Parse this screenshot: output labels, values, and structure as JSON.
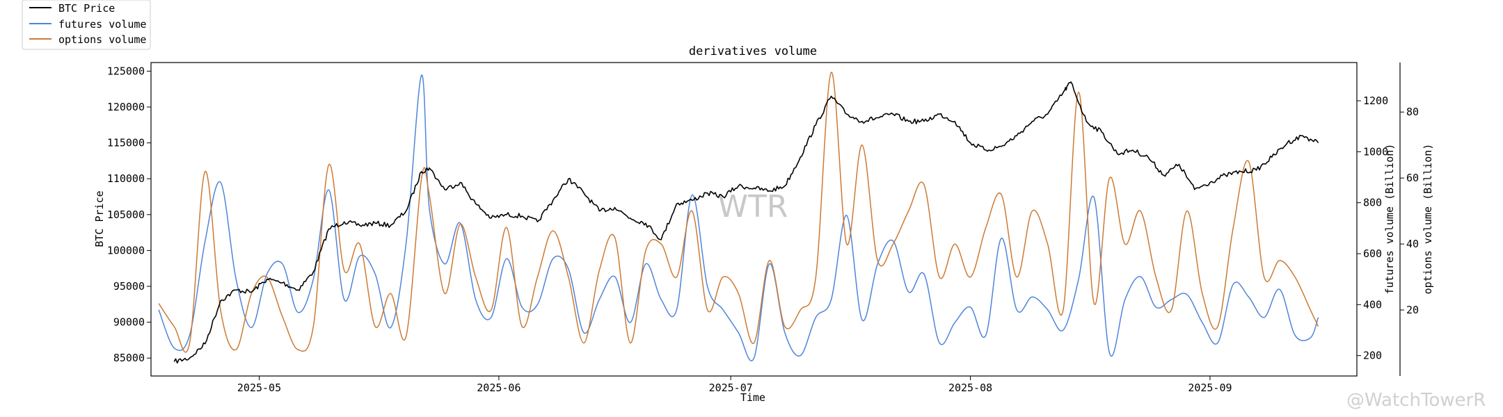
{
  "chart_data": {
    "type": "line",
    "title": "derivatives volume",
    "xlabel": "Time",
    "ylabel_left": "BTC Price",
    "ylabel_right_1": "futures volume (Billion)",
    "ylabel_right_2": "options volume (Billion)",
    "xlim": [
      "2025-04-17",
      "2025-09-20"
    ],
    "x_ticks": [
      "2025-05",
      "2025-06",
      "2025-07",
      "2025-08",
      "2025-09"
    ],
    "ylim_left": [
      82500,
      126200
    ],
    "y_ticks_left": [
      "85000",
      "90000",
      "95000",
      "100000",
      "105000",
      "110000",
      "115000",
      "120000",
      "125000"
    ],
    "ylim_futures": [
      120,
      1350
    ],
    "y_ticks_futures": [
      "200",
      "400",
      "600",
      "800",
      "1000",
      "1200"
    ],
    "ylim_options": [
      0,
      95
    ],
    "y_ticks_options": [
      "20",
      "40",
      "60",
      "80"
    ],
    "grid": false,
    "legend_position": "top-left",
    "watermark": "WTR",
    "credit": "@WatchTowerR",
    "series": [
      {
        "name": "BTC Price",
        "axis": "left",
        "color": "#000000",
        "x": [
          "2025-04-20",
          "2025-04-22",
          "2025-04-24",
          "2025-04-26",
          "2025-04-28",
          "2025-04-30",
          "2025-05-02",
          "2025-05-04",
          "2025-05-06",
          "2025-05-08",
          "2025-05-10",
          "2025-05-12",
          "2025-05-14",
          "2025-05-16",
          "2025-05-18",
          "2025-05-20",
          "2025-05-22",
          "2025-05-23",
          "2025-05-25",
          "2025-05-27",
          "2025-05-29",
          "2025-05-31",
          "2025-06-02",
          "2025-06-04",
          "2025-06-06",
          "2025-06-08",
          "2025-06-10",
          "2025-06-12",
          "2025-06-14",
          "2025-06-16",
          "2025-06-18",
          "2025-06-20",
          "2025-06-22",
          "2025-06-24",
          "2025-06-26",
          "2025-06-28",
          "2025-06-30",
          "2025-07-02",
          "2025-07-04",
          "2025-07-06",
          "2025-07-08",
          "2025-07-10",
          "2025-07-12",
          "2025-07-14",
          "2025-07-16",
          "2025-07-18",
          "2025-07-20",
          "2025-07-22",
          "2025-07-24",
          "2025-07-26",
          "2025-07-28",
          "2025-07-30",
          "2025-08-01",
          "2025-08-03",
          "2025-08-05",
          "2025-08-07",
          "2025-08-09",
          "2025-08-11",
          "2025-08-13",
          "2025-08-14",
          "2025-08-16",
          "2025-08-18",
          "2025-08-20",
          "2025-08-22",
          "2025-08-24",
          "2025-08-26",
          "2025-08-28",
          "2025-08-30",
          "2025-09-01",
          "2025-09-03",
          "2025-09-05",
          "2025-09-07",
          "2025-09-09",
          "2025-09-11",
          "2025-09-13",
          "2025-09-15"
        ],
        "values": [
          84500,
          85000,
          87000,
          93000,
          94500,
          94200,
          96000,
          95500,
          94500,
          97000,
          103000,
          104000,
          103500,
          103800,
          103500,
          105500,
          111000,
          111500,
          108500,
          109500,
          106500,
          104500,
          105000,
          104800,
          104000,
          107000,
          110000,
          108000,
          105500,
          106000,
          104500,
          103800,
          101500,
          106500,
          107000,
          108000,
          107500,
          109000,
          108700,
          108300,
          109000,
          113000,
          117500,
          121500,
          119000,
          118000,
          118500,
          119000,
          118000,
          118000,
          119000,
          118000,
          115000,
          114000,
          114500,
          116000,
          118000,
          119000,
          122000,
          123500,
          118000,
          116500,
          113500,
          114000,
          113000,
          110500,
          112000,
          108500,
          109500,
          110500,
          111000,
          111200,
          113000,
          115000,
          116000,
          115000
        ]
      },
      {
        "name": "futures volume",
        "axis": "right_1",
        "color": "#4f84d9",
        "x": [
          "2025-04-18",
          "2025-04-20",
          "2025-04-22",
          "2025-04-24",
          "2025-04-26",
          "2025-04-28",
          "2025-04-30",
          "2025-05-02",
          "2025-05-04",
          "2025-05-06",
          "2025-05-08",
          "2025-05-10",
          "2025-05-12",
          "2025-05-14",
          "2025-05-16",
          "2025-05-18",
          "2025-05-20",
          "2025-05-22",
          "2025-05-23",
          "2025-05-25",
          "2025-05-27",
          "2025-05-29",
          "2025-05-31",
          "2025-06-02",
          "2025-06-04",
          "2025-06-06",
          "2025-06-08",
          "2025-06-10",
          "2025-06-12",
          "2025-06-14",
          "2025-06-16",
          "2025-06-18",
          "2025-06-20",
          "2025-06-22",
          "2025-06-24",
          "2025-06-26",
          "2025-06-28",
          "2025-06-30",
          "2025-07-02",
          "2025-07-04",
          "2025-07-06",
          "2025-07-08",
          "2025-07-10",
          "2025-07-12",
          "2025-07-14",
          "2025-07-16",
          "2025-07-18",
          "2025-07-20",
          "2025-07-22",
          "2025-07-24",
          "2025-07-26",
          "2025-07-28",
          "2025-07-30",
          "2025-08-01",
          "2025-08-03",
          "2025-08-05",
          "2025-08-07",
          "2025-08-09",
          "2025-08-11",
          "2025-08-13",
          "2025-08-15",
          "2025-08-17",
          "2025-08-19",
          "2025-08-21",
          "2025-08-23",
          "2025-08-25",
          "2025-08-27",
          "2025-08-29",
          "2025-08-31",
          "2025-09-02",
          "2025-09-04",
          "2025-09-06",
          "2025-09-08",
          "2025-09-10",
          "2025-09-12",
          "2025-09-14",
          "2025-09-15"
        ],
        "values": [
          380,
          230,
          280,
          650,
          880,
          500,
          310,
          520,
          560,
          370,
          500,
          850,
          420,
          590,
          520,
          310,
          640,
          1300,
          780,
          560,
          720,
          420,
          350,
          580,
          390,
          400,
          580,
          540,
          290,
          420,
          510,
          330,
          560,
          420,
          380,
          830,
          470,
          380,
          290,
          190,
          560,
          290,
          200,
          350,
          420,
          750,
          340,
          560,
          650,
          450,
          520,
          250,
          330,
          390,
          280,
          660,
          380,
          430,
          380,
          300,
          500,
          820,
          210,
          420,
          510,
          390,
          420,
          440,
          330,
          250,
          480,
          430,
          350,
          460,
          280,
          270,
          350
        ]
      },
      {
        "name": "options volume",
        "axis": "right_2",
        "color": "#cc7a33",
        "x": [
          "2025-04-18",
          "2025-04-20",
          "2025-04-22",
          "2025-04-24",
          "2025-04-26",
          "2025-04-28",
          "2025-04-30",
          "2025-05-02",
          "2025-05-04",
          "2025-05-06",
          "2025-05-08",
          "2025-05-10",
          "2025-05-12",
          "2025-05-14",
          "2025-05-16",
          "2025-05-18",
          "2025-05-20",
          "2025-05-22",
          "2025-05-23",
          "2025-05-25",
          "2025-05-27",
          "2025-05-29",
          "2025-05-31",
          "2025-06-02",
          "2025-06-04",
          "2025-06-06",
          "2025-06-08",
          "2025-06-10",
          "2025-06-12",
          "2025-06-14",
          "2025-06-16",
          "2025-06-18",
          "2025-06-20",
          "2025-06-22",
          "2025-06-24",
          "2025-06-26",
          "2025-06-28",
          "2025-06-30",
          "2025-07-02",
          "2025-07-04",
          "2025-07-06",
          "2025-07-08",
          "2025-07-10",
          "2025-07-12",
          "2025-07-14",
          "2025-07-16",
          "2025-07-18",
          "2025-07-20",
          "2025-07-22",
          "2025-07-24",
          "2025-07-26",
          "2025-07-28",
          "2025-07-30",
          "2025-08-01",
          "2025-08-03",
          "2025-08-05",
          "2025-08-07",
          "2025-08-09",
          "2025-08-11",
          "2025-08-13",
          "2025-08-15",
          "2025-08-17",
          "2025-08-19",
          "2025-08-21",
          "2025-08-23",
          "2025-08-25",
          "2025-08-27",
          "2025-08-29",
          "2025-08-31",
          "2025-09-02",
          "2025-09-04",
          "2025-09-06",
          "2025-09-08",
          "2025-09-10",
          "2025-09-12",
          "2025-09-14",
          "2025-09-15"
        ],
        "values": [
          22,
          15,
          10,
          62,
          20,
          8,
          25,
          30,
          18,
          8,
          15,
          64,
          32,
          40,
          15,
          25,
          12,
          60,
          55,
          25,
          46,
          30,
          20,
          45,
          15,
          30,
          44,
          30,
          10,
          32,
          42,
          10,
          38,
          40,
          30,
          50,
          20,
          30,
          25,
          10,
          35,
          15,
          20,
          30,
          92,
          40,
          70,
          35,
          40,
          50,
          58,
          30,
          40,
          30,
          45,
          55,
          30,
          50,
          40,
          20,
          86,
          22,
          60,
          40,
          50,
          30,
          20,
          50,
          25,
          15,
          45,
          65,
          30,
          35,
          30,
          20,
          15
        ]
      }
    ]
  }
}
